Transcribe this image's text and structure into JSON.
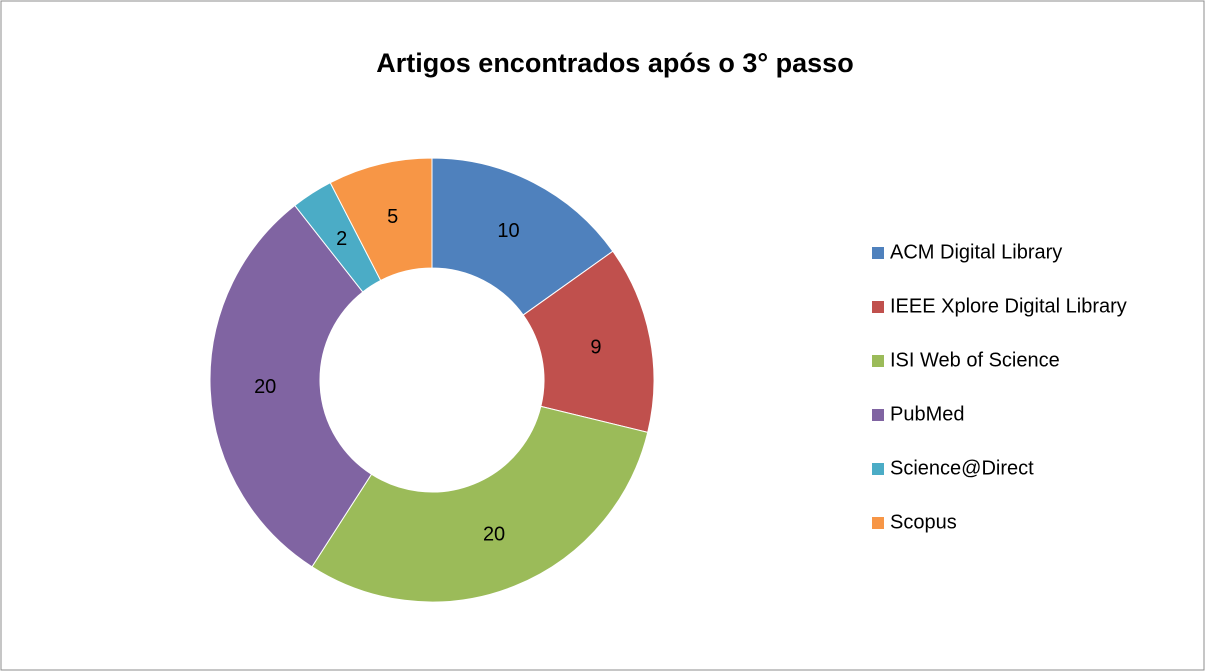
{
  "chart_data": {
    "type": "donut",
    "title": "Artigos encontrados  após o 3° passo",
    "categories": [
      "ACM Digital Library",
      "IEEE Xplore Digital Library",
      "ISI Web of Science",
      "PubMed",
      "Science@Direct",
      "Scopus"
    ],
    "values": [
      10,
      9,
      20,
      20,
      2,
      5
    ],
    "colors": [
      "#4f81bd",
      "#c0504d",
      "#9bbb59",
      "#8064a2",
      "#4bacc6",
      "#f79646"
    ],
    "legend": "right"
  }
}
